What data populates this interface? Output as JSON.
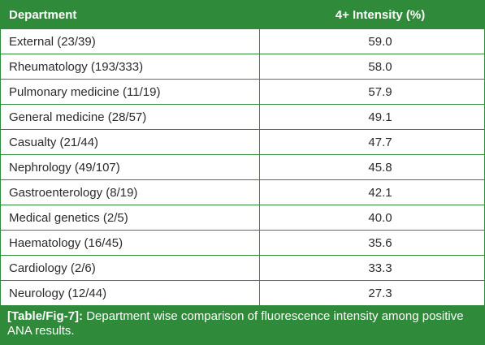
{
  "table": {
    "headers": [
      "Department",
      "4+ Intensity (%)"
    ],
    "rows": [
      {
        "department": "External (23/39)",
        "intensity": "59.0"
      },
      {
        "department": "Rheumatology (193/333)",
        "intensity": "58.0"
      },
      {
        "department": "Pulmonary medicine (11/19)",
        "intensity": "57.9"
      },
      {
        "department": "General medicine (28/57)",
        "intensity": "49.1"
      },
      {
        "department": "Casualty (21/44)",
        "intensity": "47.7"
      },
      {
        "department": "Nephrology (49/107)",
        "intensity": "45.8"
      },
      {
        "department": "Gastroenterology (8/19)",
        "intensity": "42.1"
      },
      {
        "department": "Medical genetics (2/5)",
        "intensity": "40.0"
      },
      {
        "department": "Haematology (16/45)",
        "intensity": "35.6"
      },
      {
        "department": "Cardiology (2/6)",
        "intensity": "33.3"
      },
      {
        "department": "Neurology (12/44)",
        "intensity": "27.3"
      }
    ]
  },
  "caption": {
    "label": "[Table/Fig-7]:",
    "text": " Department wise comparison of fluorescence intensity among positive ANA results."
  },
  "colors": {
    "accent": "#2f8a3a",
    "text": "#2b2b2b",
    "background": "#ffffff"
  }
}
